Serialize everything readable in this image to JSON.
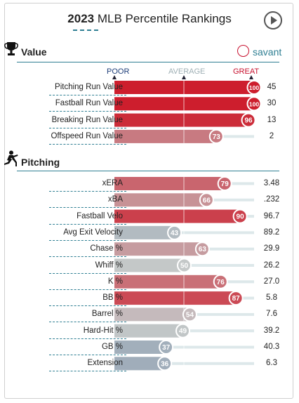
{
  "title": {
    "year": "2023",
    "text": "MLB Percentile Rankings"
  },
  "brand": {
    "name": "savant"
  },
  "scale_labels": {
    "poor": "POOR",
    "average": "AVERAGE",
    "great": "GREAT"
  },
  "chart_data": {
    "type": "bar",
    "xlim": [
      0,
      100
    ],
    "sections": [
      {
        "name": "Value",
        "icon": "trophy-icon",
        "rows": [
          {
            "metric": "Pitching Run Value",
            "percentile": 100,
            "value": "45"
          },
          {
            "metric": "Fastball Run Value",
            "percentile": 100,
            "value": "30"
          },
          {
            "metric": "Breaking Run Value",
            "percentile": 96,
            "value": "13"
          },
          {
            "metric": "Offspeed Run Value",
            "percentile": 73,
            "value": "2"
          }
        ]
      },
      {
        "name": "Pitching",
        "icon": "pitcher-icon",
        "rows": [
          {
            "metric": "xERA",
            "percentile": 79,
            "value": "3.48"
          },
          {
            "metric": "xBA",
            "percentile": 66,
            "value": ".232"
          },
          {
            "metric": "Fastball Velo",
            "percentile": 90,
            "value": "96.7"
          },
          {
            "metric": "Avg Exit Velocity",
            "percentile": 43,
            "value": "89.2"
          },
          {
            "metric": "Chase %",
            "percentile": 63,
            "value": "29.9"
          },
          {
            "metric": "Whiff %",
            "percentile": 50,
            "value": "26.2"
          },
          {
            "metric": "K %",
            "percentile": 76,
            "value": "27.0"
          },
          {
            "metric": "BB %",
            "percentile": 87,
            "value": "5.8"
          },
          {
            "metric": "Barrel %",
            "percentile": 54,
            "value": "7.6"
          },
          {
            "metric": "Hard-Hit %",
            "percentile": 49,
            "value": "39.2"
          },
          {
            "metric": "GB %",
            "percentile": 37,
            "value": "40.3"
          },
          {
            "metric": "Extension",
            "percentile": 36,
            "value": "6.3"
          }
        ]
      }
    ]
  }
}
